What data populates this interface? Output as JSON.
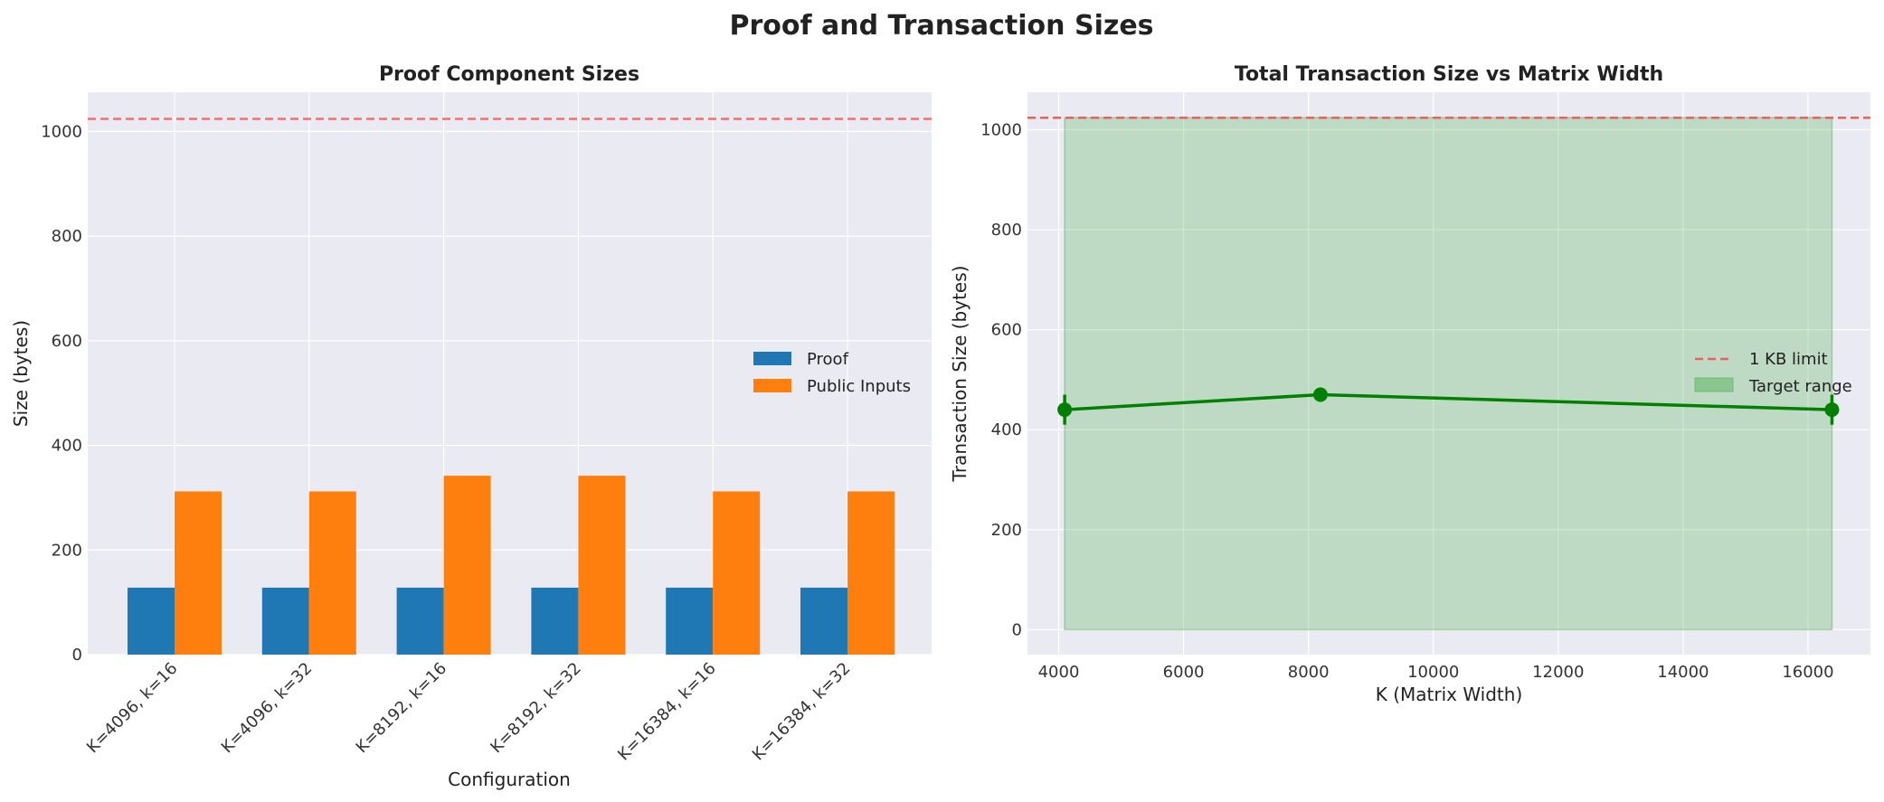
{
  "figure_title": "Proof and Transaction Sizes",
  "chart_data": [
    {
      "type": "bar",
      "title": "Proof Component Sizes",
      "xlabel": "Configuration",
      "ylabel": "Size (bytes)",
      "ylim": [
        0,
        1075
      ],
      "yticks": [
        0,
        200,
        400,
        600,
        800,
        1000
      ],
      "categories": [
        "K=4096, k=16",
        "K=4096, k=32",
        "K=8192, k=16",
        "K=8192, k=32",
        "K=16384, k=16",
        "K=16384, k=32"
      ],
      "series": [
        {
          "name": "Proof",
          "color": "#1f77b4",
          "values": [
            128,
            128,
            128,
            128,
            128,
            128
          ]
        },
        {
          "name": "Public Inputs",
          "color": "#ff7f0e",
          "values": [
            312,
            312,
            342,
            342,
            312,
            312
          ]
        }
      ],
      "reference_line": {
        "y": 1024,
        "color": "#ff6b6b",
        "style": "dashed"
      },
      "grid": true,
      "legend_position": "center-right",
      "background": "#eaeaf2"
    },
    {
      "type": "line",
      "title": "Total Transaction Size vs Matrix Width",
      "xlabel": "K (Matrix Width)",
      "ylabel": "Transaction Size (bytes)",
      "xlim": [
        3500,
        17000
      ],
      "ylim": [
        -50,
        1075
      ],
      "xticks": [
        4000,
        6000,
        8000,
        10000,
        12000,
        14000,
        16000
      ],
      "yticks": [
        0,
        200,
        400,
        600,
        800,
        1000
      ],
      "series": [
        {
          "color": "#008000",
          "x": [
            4096,
            8192,
            16384
          ],
          "y": [
            440,
            470,
            440
          ],
          "yerr": [
            30,
            0,
            30
          ]
        }
      ],
      "reference_line": {
        "y": 1024,
        "label": "1 KB limit",
        "color": "#e8625c",
        "style": "dashed"
      },
      "shaded_region": {
        "x": [
          4096,
          16384
        ],
        "y": [
          0,
          1024
        ],
        "label": "Target range",
        "color": "#4caf50"
      },
      "grid": true,
      "legend_position": "center-right",
      "background": "#eaeaf2"
    }
  ]
}
